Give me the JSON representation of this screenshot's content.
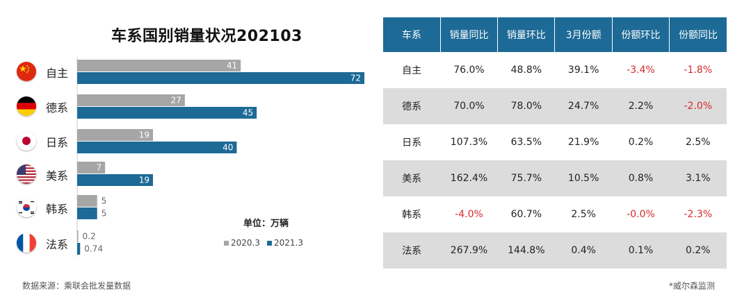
{
  "chart_data": {
    "type": "bar",
    "title": "车系国别销量状况202103",
    "unit": "单位：万辆",
    "categories": [
      "自主",
      "德系",
      "日系",
      "美系",
      "韩系",
      "法系"
    ],
    "series": [
      {
        "name": "2020.3",
        "values": [
          41,
          27,
          19,
          7,
          5,
          0.2
        ],
        "labels": [
          "41",
          "27",
          "19",
          "7",
          "5",
          "0.2"
        ],
        "color": "#a6a6a6"
      },
      {
        "name": "2021.3",
        "values": [
          72,
          45,
          40,
          19,
          5,
          0.74
        ],
        "labels": [
          "72",
          "45",
          "40",
          "19",
          "5",
          "0.74"
        ],
        "color": "#1d6a96"
      }
    ],
    "orientation": "horizontal",
    "xlim": [
      0,
      72
    ],
    "legend": "bottom-right",
    "grid": false
  },
  "flags": [
    "china-flag-icon",
    "germany-flag-icon",
    "japan-flag-icon",
    "usa-flag-icon",
    "korea-flag-icon",
    "france-flag-icon"
  ],
  "table": {
    "headers": [
      "车系",
      "销量同比",
      "销量环比",
      "3月份额",
      "份额环比",
      "份额同比"
    ],
    "rows": [
      [
        "自主",
        "76.0%",
        "48.8%",
        "39.1%",
        "-3.4%",
        "-1.8%"
      ],
      [
        "德系",
        "70.0%",
        "78.0%",
        "24.7%",
        "2.2%",
        "-2.0%"
      ],
      [
        "日系",
        "107.3%",
        "63.5%",
        "21.9%",
        "0.2%",
        "2.5%"
      ],
      [
        "美系",
        "162.4%",
        "75.7%",
        "10.5%",
        "0.8%",
        "3.1%"
      ],
      [
        "韩系",
        "-4.0%",
        "60.7%",
        "2.5%",
        "-0.0%",
        "-2.3%"
      ],
      [
        "法系",
        "267.9%",
        "144.8%",
        "0.4%",
        "0.1%",
        "0.2%"
      ]
    ]
  },
  "source": "数据来源：乘联会批发量数据",
  "credit": "*威尔森监测",
  "colors": {
    "header": "#1d6a96",
    "bar_2020": "#a6a6a6",
    "bar_2021": "#1d6a96",
    "negative": "#d42a2a",
    "row_alt": "#dcdcdc"
  }
}
